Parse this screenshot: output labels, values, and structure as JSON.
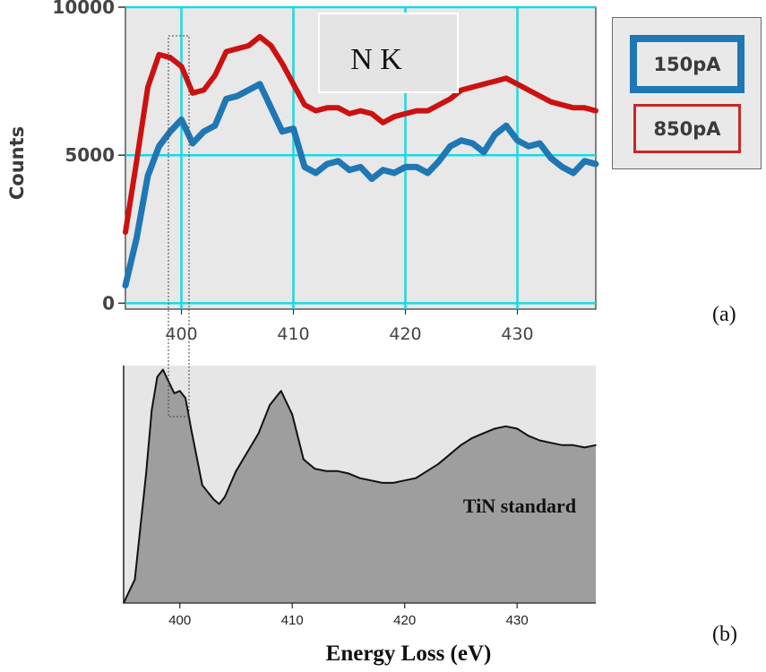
{
  "figure": {
    "panel_a_label": "(a)",
    "panel_b_label": "(b)"
  },
  "colors": {
    "series_150": "#1f77b4",
    "series_850": "#cc1111",
    "grid": "#19d9e6",
    "plot_bg": "#e8e8e8",
    "standard_fill": "#9e9e9e"
  },
  "chart_data": [
    {
      "type": "line",
      "panel": "a",
      "title": "N K",
      "ylabel": "Counts",
      "xlabel": "",
      "xlim": [
        395,
        437
      ],
      "ylim": [
        -200,
        10000
      ],
      "xticks": [
        400,
        410,
        420,
        430
      ],
      "yticks": [
        0,
        5000,
        10000
      ],
      "ytick_labels": [
        "0",
        "5000",
        "10000"
      ],
      "grid": true,
      "legend": {
        "placement": "outside right",
        "entries": [
          "150pA",
          "850pA"
        ]
      },
      "series": [
        {
          "name": "150pA",
          "x": [
            395,
            396,
            397,
            398,
            399,
            400,
            401,
            402,
            403,
            404,
            405,
            406,
            407,
            408,
            409,
            410,
            411,
            412,
            413,
            414,
            415,
            416,
            417,
            418,
            419,
            420,
            421,
            422,
            423,
            424,
            425,
            426,
            427,
            428,
            429,
            430,
            431,
            432,
            433,
            434,
            435,
            436,
            437
          ],
          "y": [
            600,
            2200,
            4300,
            5300,
            5800,
            6200,
            5400,
            5800,
            6000,
            6900,
            7000,
            7200,
            7400,
            6600,
            5800,
            5900,
            4600,
            4400,
            4700,
            4800,
            4500,
            4600,
            4200,
            4500,
            4400,
            4600,
            4600,
            4400,
            4800,
            5300,
            5500,
            5400,
            5100,
            5700,
            6000,
            5500,
            5300,
            5400,
            4900,
            4600,
            4400,
            4800,
            4700
          ]
        },
        {
          "name": "850pA",
          "x": [
            395,
            396,
            397,
            398,
            399,
            400,
            401,
            402,
            403,
            404,
            405,
            406,
            407,
            408,
            409,
            410,
            411,
            412,
            413,
            414,
            415,
            416,
            417,
            418,
            419,
            420,
            421,
            422,
            423,
            424,
            425,
            426,
            427,
            428,
            429,
            430,
            431,
            432,
            433,
            434,
            435,
            436,
            437
          ],
          "y": [
            2400,
            4800,
            7300,
            8400,
            8300,
            8000,
            7100,
            7200,
            7700,
            8500,
            8600,
            8700,
            9000,
            8700,
            8100,
            7400,
            6700,
            6500,
            6600,
            6600,
            6400,
            6500,
            6400,
            6100,
            6300,
            6400,
            6500,
            6500,
            6700,
            6900,
            7200,
            7300,
            7400,
            7500,
            7600,
            7400,
            7200,
            7000,
            6800,
            6700,
            6600,
            6600,
            6500
          ]
        }
      ]
    },
    {
      "type": "area",
      "panel": "b",
      "title": "",
      "annotation": "TiN standard",
      "xlabel": "Energy Loss (eV)",
      "ylabel": "",
      "xlim": [
        395,
        437
      ],
      "ylim": [
        0,
        1
      ],
      "xticks": [
        400,
        410,
        420,
        430
      ],
      "grid": false,
      "series": [
        {
          "x": [
            395,
            396,
            397,
            397.5,
            398,
            398.5,
            399,
            399.5,
            400,
            400.5,
            401,
            402,
            403,
            403.5,
            404,
            405,
            406,
            407,
            408,
            409,
            410,
            411,
            412,
            413,
            414,
            415,
            416,
            417,
            418,
            419,
            420,
            421,
            422,
            423,
            424,
            425,
            426,
            427,
            428,
            429,
            430,
            431,
            432,
            433,
            434,
            435,
            436,
            437
          ],
          "y": [
            0.0,
            0.1,
            0.55,
            0.82,
            0.96,
            0.99,
            0.94,
            0.89,
            0.9,
            0.87,
            0.74,
            0.5,
            0.44,
            0.42,
            0.45,
            0.56,
            0.64,
            0.72,
            0.84,
            0.9,
            0.8,
            0.61,
            0.57,
            0.56,
            0.56,
            0.55,
            0.53,
            0.52,
            0.51,
            0.51,
            0.52,
            0.53,
            0.56,
            0.59,
            0.63,
            0.67,
            0.7,
            0.72,
            0.74,
            0.75,
            0.74,
            0.71,
            0.69,
            0.68,
            0.67,
            0.67,
            0.66,
            0.67
          ]
        }
      ]
    }
  ]
}
